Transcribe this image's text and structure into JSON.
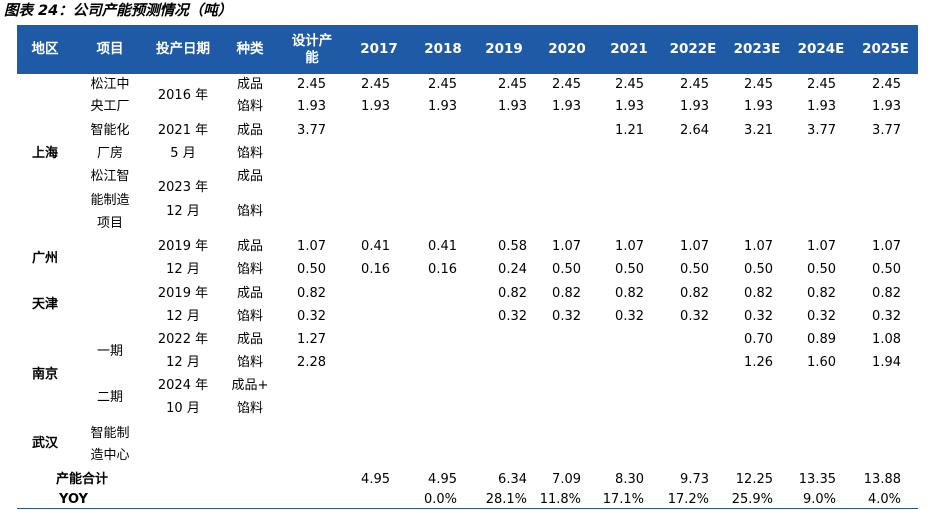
{
  "title": "图表 24：公司产能预测情况（吨）",
  "headers": {
    "region": "地区",
    "project": "项目",
    "date": "投产日期",
    "kind": "种类",
    "design_l1": "设计产",
    "design_l2": "能",
    "y2017": "2017",
    "y2018": "2018",
    "y2019": "2019",
    "y2020": "2020",
    "y2021": "2021",
    "y2022": "2022E",
    "y2023": "2023E",
    "y2024": "2024E",
    "y2025": "2025E"
  },
  "regions": {
    "shanghai": "上海",
    "guangzhou": "广州",
    "tianjin": "天津",
    "nanjing": "南京",
    "wuhan": "武汉"
  },
  "projects": {
    "sj1": "松江中",
    "sj2": "央工厂",
    "zn1": "智能化",
    "zn2": "厂房",
    "zz1": "松江智",
    "zz2": "能制造",
    "zz3": "项目",
    "nj1": "一期",
    "nj2": "二期",
    "wh1": "智能制",
    "wh2": "造中心"
  },
  "dates": {
    "sj": "2016 年",
    "zn1": "2021 年",
    "zn2": "5 月",
    "zz1": "2023 年",
    "zz2": "12 月",
    "gz1": "2019 年",
    "gz2": "12 月",
    "tj1": "2019 年",
    "tj2": "12 月",
    "nj1a": "2022 年",
    "nj1b": "12 月",
    "nj2a": "2024 年",
    "nj2b": "10 月"
  },
  "kinds": {
    "finished": "成品",
    "filling": "馅料",
    "both1": "成品+",
    "both2": "馅料"
  },
  "rows": [
    [
      "2.45",
      "2.45",
      "2.45",
      "2.45",
      "2.45",
      "2.45",
      "2.45",
      "2.45",
      "2.45",
      "2.45"
    ],
    [
      "1.93",
      "1.93",
      "1.93",
      "1.93",
      "1.93",
      "1.93",
      "1.93",
      "1.93",
      "1.93",
      "1.93"
    ],
    [
      "3.77",
      "",
      "",
      "",
      "",
      "1.21",
      "2.64",
      "3.21",
      "3.77",
      "3.77"
    ],
    [
      "1.07",
      "0.41",
      "0.41",
      "0.58",
      "1.07",
      "1.07",
      "1.07",
      "1.07",
      "1.07",
      "1.07"
    ],
    [
      "0.50",
      "0.16",
      "0.16",
      "0.24",
      "0.50",
      "0.50",
      "0.50",
      "0.50",
      "0.50",
      "0.50"
    ],
    [
      "0.82",
      "",
      "",
      "0.82",
      "0.82",
      "0.82",
      "0.82",
      "0.82",
      "0.82",
      "0.82"
    ],
    [
      "0.32",
      "",
      "",
      "0.32",
      "0.32",
      "0.32",
      "0.32",
      "0.32",
      "0.32",
      "0.32"
    ],
    [
      "1.27",
      "",
      "",
      "",
      "",
      "",
      "",
      "0.70",
      "0.89",
      "1.08"
    ],
    [
      "2.28",
      "",
      "",
      "",
      "",
      "",
      "",
      "1.26",
      "1.60",
      "1.94"
    ]
  ],
  "total": {
    "label": "产能合计",
    "values": [
      "4.95",
      "4.95",
      "6.34",
      "7.09",
      "8.30",
      "9.73",
      "12.25",
      "13.35",
      "13.88"
    ]
  },
  "yoy": {
    "label": "YOY",
    "values": [
      "",
      "0.0%",
      "28.1%",
      "11.8%",
      "17.1%",
      "17.2%",
      "25.9%",
      "9.0%",
      "4.0%"
    ]
  }
}
